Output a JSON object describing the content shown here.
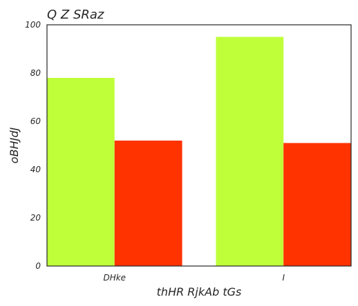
{
  "chart_data": {
    "type": "bar",
    "title": "Q  Z SRaz",
    "xlabel": "thHR RjkAb tGs",
    "ylabel": "oBHJdJ",
    "categories": [
      "DHke",
      "I"
    ],
    "series": [
      {
        "values": [
          78,
          95
        ],
        "color": "#bfff3a"
      },
      {
        "values": [
          52,
          51
        ],
        "color": "#ff3300"
      }
    ],
    "ylim": [
      0,
      100
    ],
    "yticks": [
      0,
      20,
      40,
      60,
      80,
      100
    ],
    "grid": false,
    "legend": "none"
  }
}
